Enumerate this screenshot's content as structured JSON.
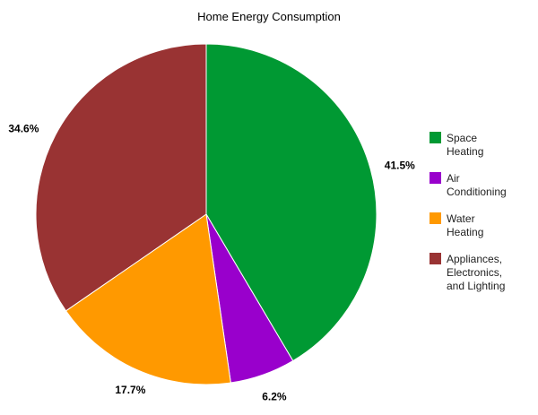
{
  "chart_data": {
    "type": "pie",
    "title": "Home Energy Consumption",
    "legend_position": "right",
    "slices": [
      {
        "label": "Space Heating",
        "legend_lines": [
          "Space",
          "Heating"
        ],
        "value": 41.5,
        "value_label": "41.5%",
        "color": "#009933"
      },
      {
        "label": "Air Conditioning",
        "legend_lines": [
          "Air",
          "Conditioning"
        ],
        "value": 6.2,
        "value_label": "6.2%",
        "color": "#9900cc"
      },
      {
        "label": "Water Heating",
        "legend_lines": [
          "Water",
          "Heating"
        ],
        "value": 17.7,
        "value_label": "17.7%",
        "color": "#ff9900"
      },
      {
        "label": "Appliances, Electronics, and Lighting",
        "legend_lines": [
          "Appliances,",
          "Electronics,",
          "and Lighting"
        ],
        "value": 34.6,
        "value_label": "34.6%",
        "color": "#993333"
      }
    ]
  }
}
